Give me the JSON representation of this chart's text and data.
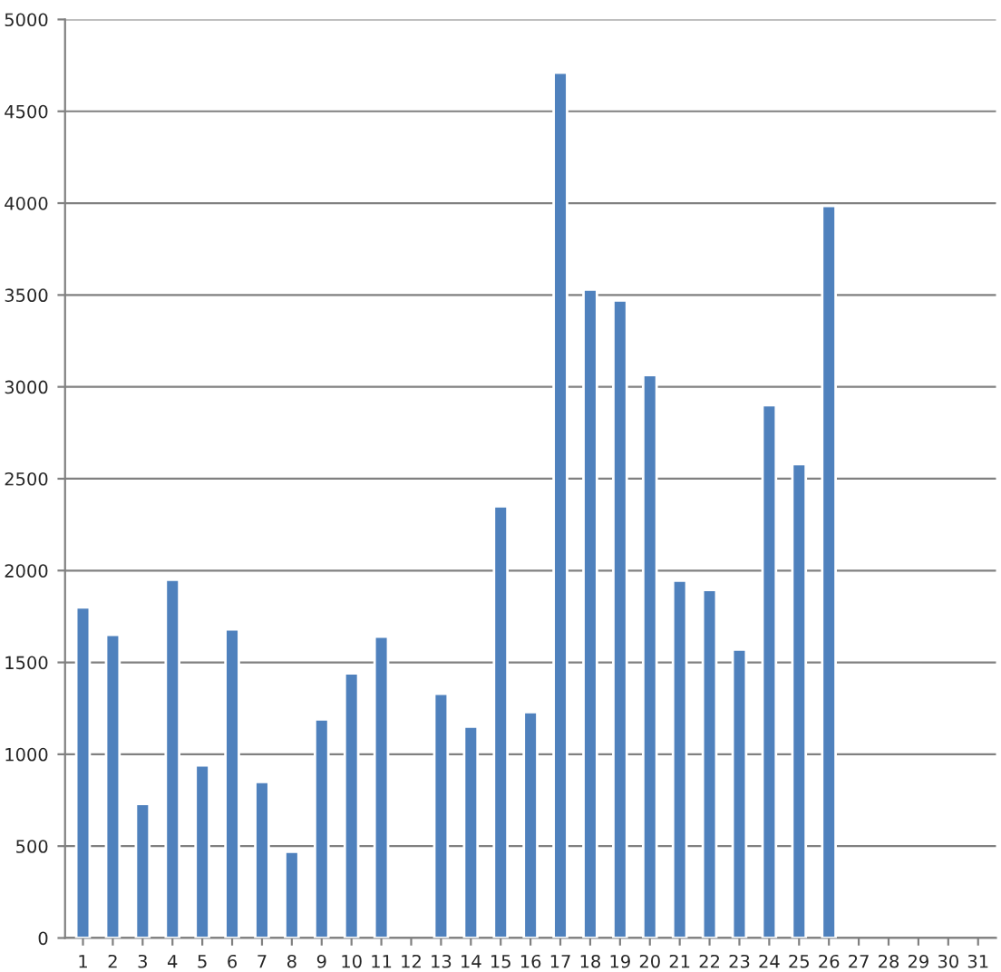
{
  "chart_data": {
    "type": "bar",
    "categories": [
      "1",
      "2",
      "3",
      "4",
      "5",
      "6",
      "7",
      "8",
      "9",
      "10",
      "11",
      "12",
      "13",
      "14",
      "15",
      "16",
      "17",
      "18",
      "19",
      "20",
      "21",
      "22",
      "23",
      "24",
      "25",
      "26",
      "27",
      "28",
      "29",
      "30",
      "31"
    ],
    "values": [
      1800,
      1650,
      730,
      1950,
      940,
      1680,
      850,
      470,
      1190,
      1440,
      1640,
      null,
      1330,
      1150,
      2350,
      1230,
      4710,
      3530,
      3470,
      3065,
      1945,
      1895,
      1570,
      2900,
      2580,
      3985,
      null,
      null,
      null,
      null,
      null
    ],
    "color": "#4f81bd",
    "ylim": [
      0,
      5000
    ],
    "yticks": [
      0,
      500,
      1000,
      1500,
      2000,
      2500,
      3000,
      3500,
      4000,
      4500,
      5000
    ],
    "grid": "y",
    "legend": false
  }
}
